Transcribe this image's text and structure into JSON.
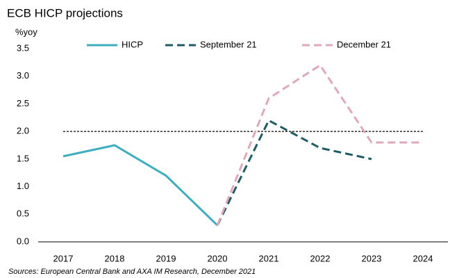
{
  "chart_data": {
    "type": "line",
    "title": "ECB HICP projections",
    "y_label": "%yoy",
    "source": "Sources: European Central Bank and AXA IM Research, December 2021",
    "categories": [
      "2017",
      "2018",
      "2019",
      "2020",
      "2021",
      "2022",
      "2023",
      "2024"
    ],
    "series": [
      {
        "name": "HICP",
        "color": "#3aafc0",
        "style": "solid",
        "values": [
          1.55,
          1.75,
          1.2,
          0.3,
          null,
          null,
          null,
          null
        ]
      },
      {
        "name": "September 21",
        "color": "#1d5c63",
        "style": "dashed",
        "values": [
          null,
          null,
          null,
          0.3,
          2.2,
          1.7,
          1.5,
          null
        ]
      },
      {
        "name": "December 21",
        "color": "#e0a8b8",
        "style": "dashed",
        "values": [
          null,
          null,
          null,
          0.3,
          2.6,
          3.2,
          1.8,
          1.8
        ]
      }
    ],
    "reference_line": 2.0,
    "ylim": [
      0,
      3.5
    ],
    "yticks": [
      {
        "value": 0,
        "label": "0.0"
      },
      0.5,
      {
        "value": 1,
        "label": "1.0"
      },
      1.5,
      {
        "value": 2,
        "label": "2.0"
      },
      2.5,
      {
        "value": 3,
        "label": "3.0"
      },
      3.5
    ],
    "grid": false,
    "legend": "top"
  }
}
